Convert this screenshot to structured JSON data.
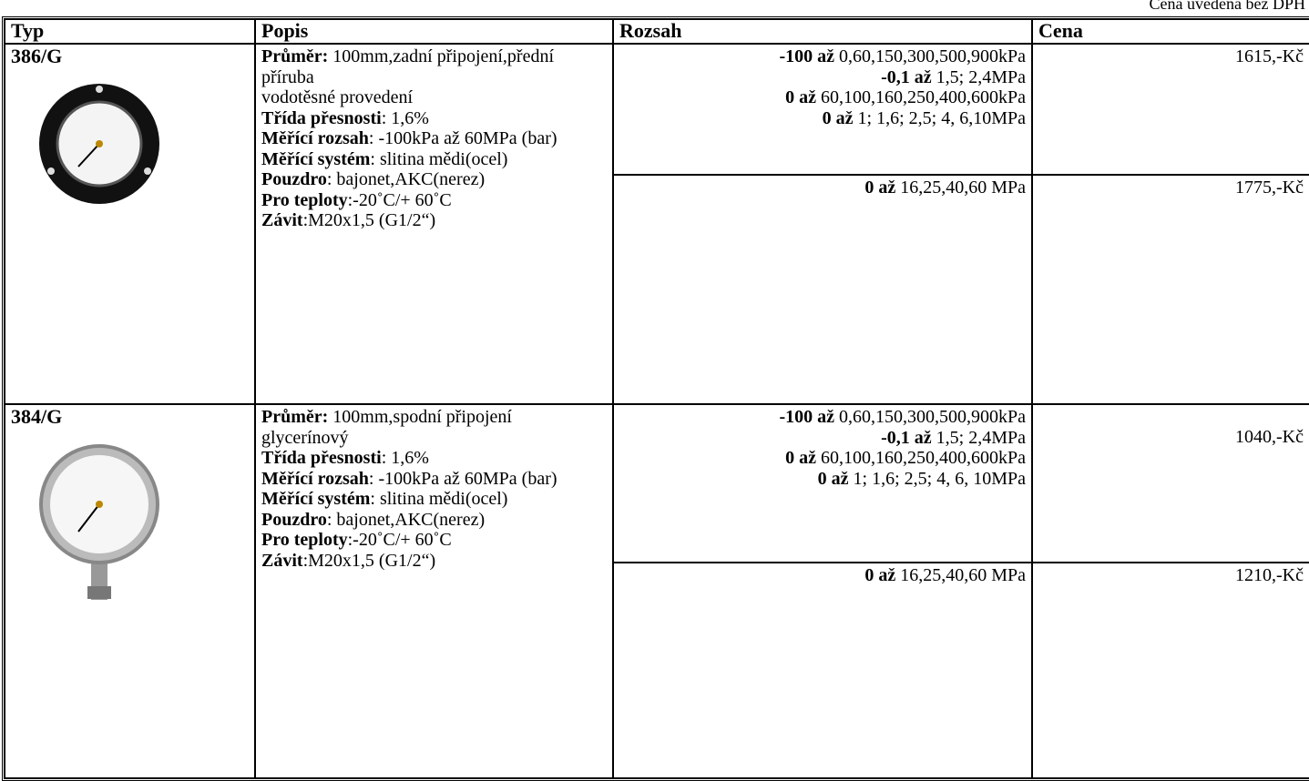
{
  "note": "Cena uvedena bez DPH",
  "header": [
    "Typ",
    "Popis",
    "Rozsah",
    "Cena"
  ],
  "products": [
    {
      "type": "386/G",
      "description": [
        {
          "label": "Průměr:",
          "text": "100mm,zadní připojení,přední příruba"
        },
        {
          "text": "vodotěsné provedení"
        },
        {
          "label": "Třída přesnosti",
          "text": ": 1,6%"
        },
        {
          "label": "Měřící rozsah",
          "text": ": -100kPa až 60MPa (bar)"
        },
        {
          "label": "Měřící systém",
          "text": ": slitina mědi(ocel)"
        },
        {
          "label": "Pouzdro",
          "text": ": bajonet,AKC(nerez)"
        },
        {
          "label": "Pro teploty",
          "text": ":-20˚C/+ 60˚C"
        },
        {
          "label": "Závit",
          "text": ":M20x1,5 (G1/2“)"
        }
      ],
      "variants": [
        {
          "ranges": [
            {
              "label": "-100 až",
              "text": "0,60,150,300,500,900kPa"
            },
            {
              "label": "-0,1 až",
              "text": "1,5; 2,4MPa"
            },
            {
              "label": "0 až",
              "text": "60,100,160,250,400,600kPa"
            },
            {
              "label": "0 až",
              "text": "1; 1,6; 2,5; 4, 6,10MPa"
            }
          ],
          "price": "1615,-Kč"
        },
        {
          "ranges": [
            {
              "label": "0 až",
              "text": "16,25,40,60 MPa"
            }
          ],
          "price": "1775,-Kč"
        }
      ]
    },
    {
      "type": "384/G",
      "description": [
        {
          "label": "Průměr:",
          "text": "100mm,spodní připojení"
        },
        {
          "text": "glycerínový"
        },
        {
          "label": "Třída přesnosti",
          "text": ": 1,6%"
        },
        {
          "label": "Měřící rozsah",
          "text": ": -100kPa až 60MPa (bar)"
        },
        {
          "label": "Měřící systém",
          "text": ": slitina mědi(ocel)"
        },
        {
          "label": "Pouzdro",
          "text": ": bajonet,AKC(nerez)"
        },
        {
          "label": "Pro teploty",
          "text": ":-20˚C/+ 60˚C"
        },
        {
          "label": "Závit",
          "text": ":M20x1,5 (G1/2“)"
        }
      ],
      "variants": [
        {
          "ranges": [
            {
              "label": "-100 až",
              "text": "0,60,150,300,500,900kPa"
            },
            {
              "label": "-0,1 až",
              "text": "1,5; 2,4MPa"
            },
            {
              "label": "0 až",
              "text": "60,100,160,250,400,600kPa"
            },
            {
              "label": "0 až",
              "text": "1; 1,6; 2,5; 4, 6, 10MPa"
            }
          ],
          "price": "1040,-Kč"
        },
        {
          "ranges": [
            {
              "label": "0 až",
              "text": "16,25,40,60 MPa"
            }
          ],
          "price": "1210,-Kč"
        }
      ]
    }
  ]
}
